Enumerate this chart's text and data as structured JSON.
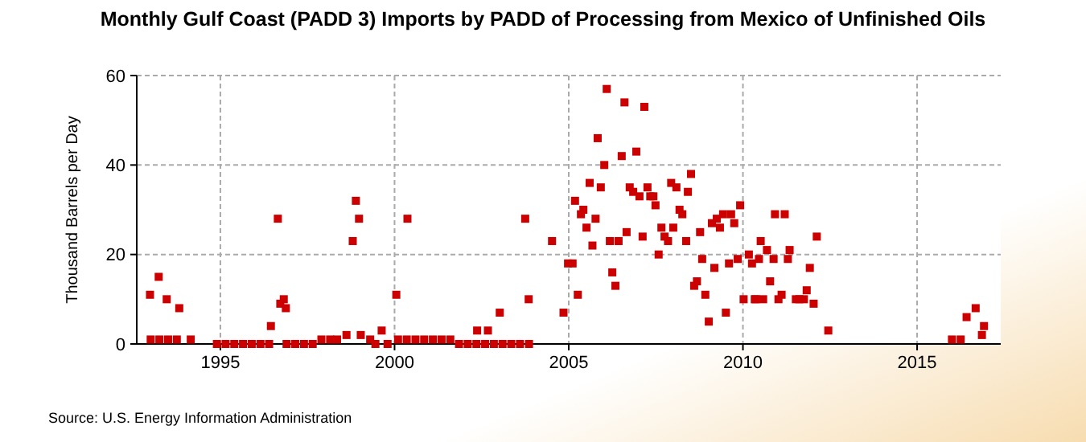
{
  "chart_data": {
    "type": "scatter",
    "title": "Monthly Gulf Coast (PADD 3) Imports by PADD of Processing from Mexico of Unfinished Oils",
    "ylabel": "Thousand Barrels per Day",
    "annotations": [
      "Source: U.S. Energy Information Administration"
    ],
    "xlim": [
      1992.6,
      2017.4
    ],
    "xticks": [
      1995,
      2000,
      2005,
      2010,
      2015
    ],
    "ylim": [
      0,
      60
    ],
    "yticks": [
      0,
      20,
      40,
      60
    ],
    "grid": true,
    "marker": "square",
    "series": [
      {
        "color": "#cc0000",
        "x": [
          1992.98,
          1993.0,
          1993.23,
          1993.25,
          1993.46,
          1993.5,
          1993.75,
          1993.82,
          1994.15,
          1994.9,
          1995.15,
          1995.4,
          1995.65,
          1995.9,
          1996.15,
          1996.4,
          1996.45,
          1996.65,
          1996.72,
          1996.82,
          1996.88,
          1996.9,
          1997.15,
          1997.4,
          1997.65,
          1997.9,
          1998.15,
          1998.35,
          1998.62,
          1998.8,
          1998.89,
          1998.98,
          1999.03,
          1999.3,
          1999.45,
          1999.63,
          1999.8,
          2000.05,
          2000.1,
          2000.35,
          2000.37,
          2000.6,
          2000.85,
          2001.1,
          2001.35,
          2001.6,
          2001.85,
          2002.1,
          2002.35,
          2002.37,
          2002.6,
          2002.68,
          2002.85,
          2003.02,
          2003.1,
          2003.35,
          2003.6,
          2003.75,
          2003.85,
          2003.86,
          2004.52,
          2004.85,
          2004.98,
          2005.11,
          2005.18,
          2005.26,
          2005.35,
          2005.42,
          2005.51,
          2005.6,
          2005.68,
          2005.77,
          2005.83,
          2005.92,
          2006.02,
          2006.09,
          2006.18,
          2006.25,
          2006.34,
          2006.43,
          2006.52,
          2006.6,
          2006.66,
          2006.75,
          2006.85,
          2006.94,
          2007.03,
          2007.12,
          2007.17,
          2007.26,
          2007.34,
          2007.43,
          2007.49,
          2007.58,
          2007.66,
          2007.75,
          2007.85,
          2007.94,
          2008.0,
          2008.09,
          2008.18,
          2008.26,
          2008.37,
          2008.42,
          2008.51,
          2008.6,
          2008.68,
          2008.77,
          2008.83,
          2008.92,
          2009.02,
          2009.11,
          2009.18,
          2009.25,
          2009.34,
          2009.43,
          2009.51,
          2009.6,
          2009.66,
          2009.75,
          2009.85,
          2009.92,
          2010.02,
          2010.17,
          2010.26,
          2010.34,
          2010.37,
          2010.46,
          2010.51,
          2010.58,
          2010.69,
          2010.78,
          2010.88,
          2010.92,
          2011.02,
          2011.11,
          2011.2,
          2011.29,
          2011.34,
          2011.52,
          2011.62,
          2011.75,
          2011.83,
          2011.92,
          2012.03,
          2012.12,
          2012.45,
          2016.0,
          2016.25,
          2016.42,
          2016.68,
          2016.86,
          2016.92
        ],
        "values": [
          11,
          1,
          15,
          1,
          10,
          1,
          1,
          8,
          1,
          0,
          0,
          0,
          0,
          0,
          0,
          0,
          4,
          28,
          9,
          10,
          8,
          0,
          0,
          0,
          0,
          1,
          1,
          1,
          2,
          23,
          32,
          28,
          2,
          1,
          0,
          3,
          0,
          11,
          1,
          1,
          28,
          1,
          1,
          1,
          1,
          1,
          0,
          0,
          0,
          3,
          0,
          3,
          0,
          7,
          0,
          0,
          0,
          28,
          10,
          0,
          23,
          7,
          18,
          18,
          32,
          11,
          29,
          30,
          26,
          36,
          22,
          28,
          46,
          35,
          40,
          57,
          23,
          16,
          13,
          23,
          42,
          54,
          25,
          35,
          34,
          43,
          33,
          24,
          53,
          35,
          33,
          33,
          31,
          20,
          26,
          24,
          23,
          36,
          26,
          35,
          30,
          29,
          23,
          34,
          38,
          13,
          14,
          25,
          19,
          11,
          5,
          27,
          17,
          28,
          26,
          29,
          7,
          18,
          29,
          27,
          19,
          31,
          10,
          20,
          18,
          10,
          10,
          19,
          23,
          10,
          21,
          14,
          19,
          29,
          10,
          11,
          29,
          19,
          21,
          10,
          10,
          10,
          12,
          17,
          9,
          24,
          3,
          1,
          1,
          6,
          8,
          2,
          4
        ]
      }
    ]
  }
}
